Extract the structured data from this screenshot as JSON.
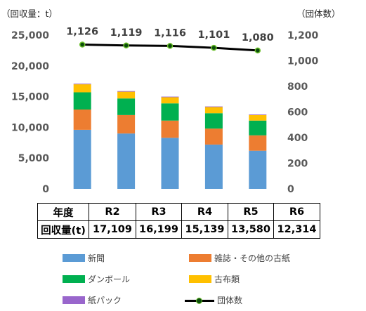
{
  "chart_data": {
    "type": "bar",
    "stacked": true,
    "categories": [
      "R2",
      "R3",
      "R4",
      "R5",
      "R6"
    ],
    "series": [
      {
        "name": "新聞",
        "color": "#5b9bd5",
        "values": [
          9600,
          9000,
          8300,
          7200,
          6200
        ]
      },
      {
        "name": "雑誌・その他の古紙",
        "color": "#ed7d31",
        "values": [
          3300,
          3000,
          2800,
          2600,
          2500
        ]
      },
      {
        "name": "ダンボール",
        "color": "#00b050",
        "values": [
          2800,
          2700,
          2800,
          2500,
          2400
        ]
      },
      {
        "name": "古布類",
        "color": "#ffc000",
        "values": [
          1300,
          1100,
          1000,
          1000,
          900
        ]
      },
      {
        "name": "紙パック",
        "color": "#9966cc",
        "values": [
          100,
          100,
          100,
          100,
          100
        ]
      }
    ],
    "line": {
      "name": "団体数",
      "values": [
        1126,
        1119,
        1116,
        1101,
        1080
      ],
      "labels": [
        "1,126",
        "1,119",
        "1,116",
        "1,101",
        "1,080"
      ]
    },
    "left_axis": {
      "label": "（回収量：t）",
      "ylim": [
        0,
        25000
      ],
      "ticks": [
        "0",
        "5,000",
        "10,000",
        "15,000",
        "20,000",
        "25,000"
      ]
    },
    "right_axis": {
      "label": "（団体数）",
      "ylim": [
        0,
        1200
      ],
      "ticks": [
        "0",
        "200",
        "400",
        "600",
        "800",
        "1,000",
        "1,200"
      ]
    },
    "grid": false
  },
  "table": {
    "header": [
      "年度",
      "R2",
      "R3",
      "R4",
      "R5",
      "R6"
    ],
    "row": [
      "回収量(t)",
      "17,109",
      "16,199",
      "15,139",
      "13,580",
      "12,314"
    ]
  },
  "legend": [
    {
      "label": "新聞",
      "color": "#5b9bd5",
      "kind": "box"
    },
    {
      "label": "雑誌・その他の古紙",
      "color": "#ed7d31",
      "kind": "box"
    },
    {
      "label": "ダンボール",
      "color": "#00b050",
      "kind": "box"
    },
    {
      "label": "古布類",
      "color": "#ffc000",
      "kind": "box"
    },
    {
      "label": "紙パック",
      "color": "#9966cc",
      "kind": "box"
    },
    {
      "label": "団体数",
      "color": "#000000",
      "kind": "line"
    }
  ]
}
